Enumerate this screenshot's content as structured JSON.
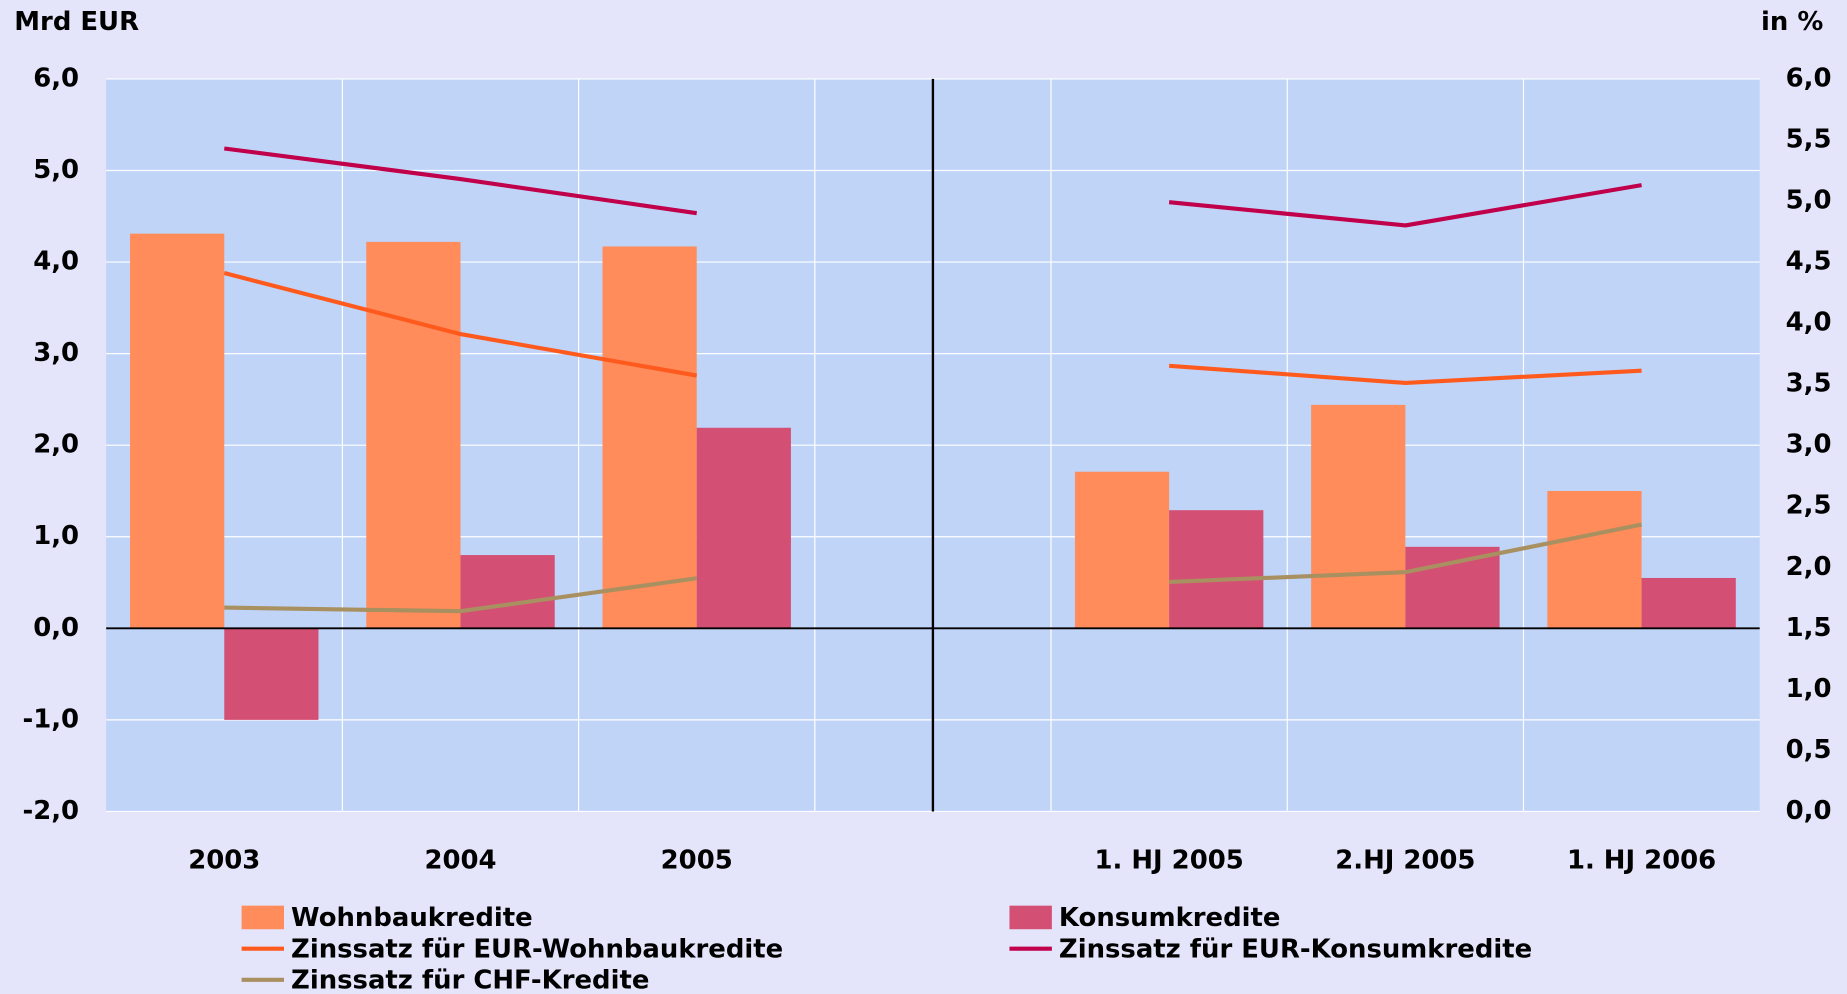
{
  "chart_data": {
    "type": "bar",
    "y_label": "Mrd EUR",
    "y2_label": "in %",
    "categories": [
      "2003",
      "2004",
      "2005",
      null,
      "1. HJ 2005",
      "2.HJ 2005",
      "1. HJ 2006"
    ],
    "series": [
      {
        "name": "Wohnbaukredite",
        "type": "bar",
        "color": "#ff8c5a",
        "values": [
          4.31,
          4.22,
          4.17,
          null,
          1.71,
          2.44,
          1.5
        ]
      },
      {
        "name": "Konsumkredite",
        "type": "bar",
        "color": "#d34f73",
        "values": [
          -1.0,
          0.8,
          2.19,
          null,
          1.29,
          0.89,
          0.55
        ]
      },
      {
        "name": "Zinssatz für EUR-Wohnbaukredite",
        "type": "line",
        "axis": "y2",
        "color": "#ff5a1e",
        "values": [
          4.41,
          3.91,
          3.57,
          null,
          3.65,
          3.51,
          3.61
        ]
      },
      {
        "name": "Zinssatz für EUR-Konsumkredite",
        "type": "line",
        "axis": "y2",
        "color": "#c0004a",
        "values": [
          5.43,
          5.18,
          4.9,
          null,
          4.99,
          4.8,
          5.13
        ]
      },
      {
        "name": "Zinssatz für CHF-Kredite",
        "type": "line",
        "axis": "y2",
        "color": "#a89060",
        "values": [
          1.67,
          1.64,
          1.91,
          null,
          1.88,
          1.96,
          2.35
        ]
      }
    ],
    "ylim": [
      -2,
      6
    ],
    "yticks": [
      {
        "value": -2,
        "label": "-2,0"
      },
      {
        "value": -1,
        "label": "-1,0"
      },
      {
        "value": 0,
        "label": "0,0"
      },
      {
        "value": 1,
        "label": "1,0"
      },
      {
        "value": 2,
        "label": "2,0"
      },
      {
        "value": 3,
        "label": "3,0"
      },
      {
        "value": 4,
        "label": "4,0"
      },
      {
        "value": 5,
        "label": "5,0"
      },
      {
        "value": 6,
        "label": "6,0"
      }
    ],
    "y2lim": [
      0,
      6
    ],
    "y2ticks": [
      {
        "value": 0,
        "label": "0,0"
      },
      {
        "value": 0.5,
        "label": "0,5"
      },
      {
        "value": 1,
        "label": "1,0"
      },
      {
        "value": 1.5,
        "label": "1,5"
      },
      {
        "value": 2,
        "label": "2,0"
      },
      {
        "value": 2.5,
        "label": "2,5"
      },
      {
        "value": 3,
        "label": "3,0"
      },
      {
        "value": 3.5,
        "label": "3,5"
      },
      {
        "value": 4,
        "label": "4,0"
      },
      {
        "value": 4.5,
        "label": "4,5"
      },
      {
        "value": 5,
        "label": "5,0"
      },
      {
        "value": 5.5,
        "label": "5,5"
      },
      {
        "value": 6,
        "label": "6,0"
      }
    ],
    "grid": true
  }
}
